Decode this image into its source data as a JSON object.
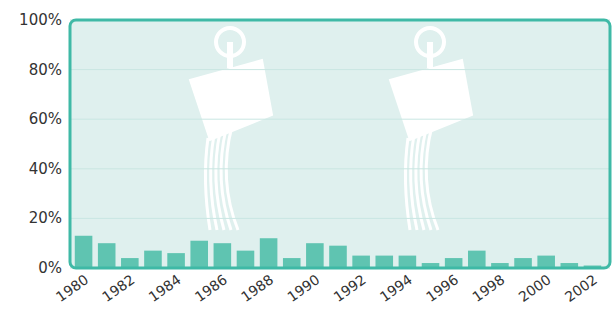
{
  "chart_data": {
    "type": "bar",
    "categories": [
      "1980",
      null,
      "1982",
      null,
      "1984",
      null,
      "1986",
      null,
      "1988",
      null,
      "1990",
      null,
      "1992",
      null,
      "1994",
      null,
      "1996",
      null,
      "1998",
      null,
      "2000",
      null,
      "2002"
    ],
    "values": [
      13,
      10,
      4,
      7,
      6,
      11,
      10,
      7,
      12,
      4,
      10,
      9,
      5,
      5,
      5,
      2,
      4,
      7,
      2,
      4,
      5,
      2,
      1
    ],
    "color": "#5fc4b1",
    "ylim": [
      0,
      100
    ],
    "yticks": [
      {
        "value": 0,
        "label": "0%"
      },
      {
        "value": 20,
        "label": "20%"
      },
      {
        "value": 40,
        "label": "40%"
      },
      {
        "value": 60,
        "label": "60%"
      },
      {
        "value": 80,
        "label": "80%"
      },
      {
        "value": 100,
        "label": "100%"
      }
    ],
    "grid": true
  }
}
